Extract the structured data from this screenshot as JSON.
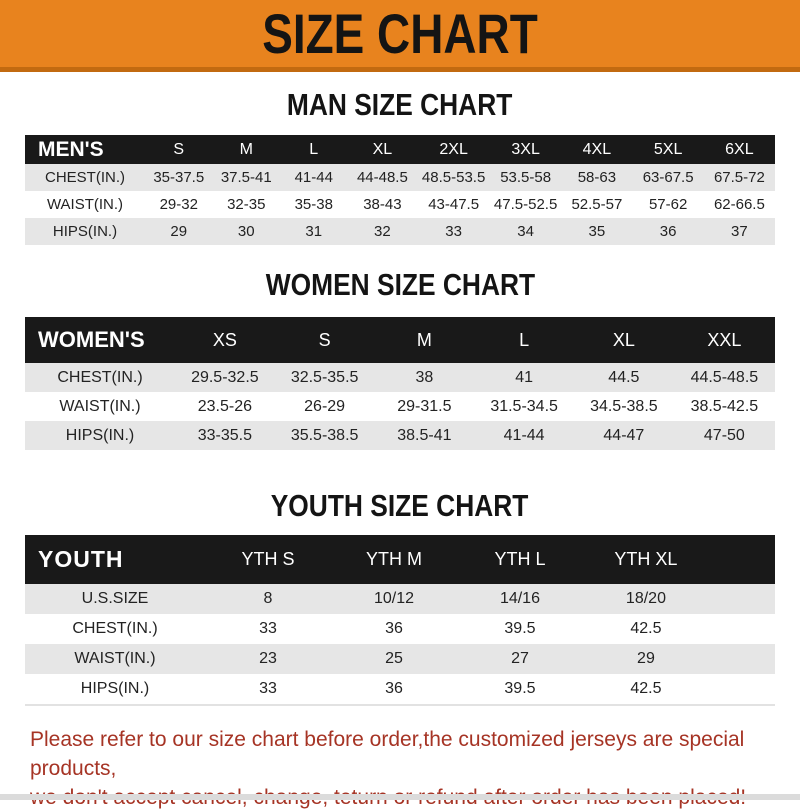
{
  "page": {
    "title": "SIZE CHART",
    "note_line1": "Please refer to our size chart before order,the customized jerseys are special products,",
    "note_line2": "we don't accept cancel, change, teturn or refund after order has been placed!"
  },
  "colors": {
    "banner_orange": "#E8831E",
    "banner_orange_dark": "#C26A10",
    "header_bar_black": "#191919",
    "row_gray": "#E6E6E6",
    "note_red": "#A63425"
  },
  "sections": [
    {
      "heading": "MAN SIZE CHART",
      "table": {
        "corner_label": "MEN'S",
        "columns": [
          "S",
          "M",
          "L",
          "XL",
          "2XL",
          "3XL",
          "4XL",
          "5XL",
          "6XL"
        ],
        "rows": [
          {
            "label": "CHEST(IN.)",
            "values": [
              "35-37.5",
              "37.5-41",
              "41-44",
              "44-48.5",
              "48.5-53.5",
              "53.5-58",
              "58-63",
              "63-67.5",
              "67.5-72"
            ]
          },
          {
            "label": "WAIST(IN.)",
            "values": [
              "29-32",
              "32-35",
              "35-38",
              "38-43",
              "43-47.5",
              "47.5-52.5",
              "52.5-57",
              "57-62",
              "62-66.5"
            ]
          },
          {
            "label": "HIPS(IN.)",
            "values": [
              "29",
              "30",
              "31",
              "32",
              "33",
              "34",
              "35",
              "36",
              "37"
            ]
          }
        ]
      }
    },
    {
      "heading": "WOMEN SIZE CHART",
      "table": {
        "corner_label": "WOMEN'S",
        "columns": [
          "XS",
          "S",
          "M",
          "L",
          "XL",
          "XXL"
        ],
        "rows": [
          {
            "label": "CHEST(IN.)",
            "values": [
              "29.5-32.5",
              "32.5-35.5",
              "38",
              "41",
              "44.5",
              "44.5-48.5"
            ]
          },
          {
            "label": "WAIST(IN.)",
            "values": [
              "23.5-26",
              "26-29",
              "29-31.5",
              "31.5-34.5",
              "34.5-38.5",
              "38.5-42.5"
            ]
          },
          {
            "label": "HIPS(IN.)",
            "values": [
              "33-35.5",
              "35.5-38.5",
              "38.5-41",
              "41-44",
              "44-47",
              "47-50"
            ]
          }
        ]
      }
    },
    {
      "heading": "YOUTH SIZE CHART",
      "table": {
        "corner_label": "YOUTH",
        "columns": [
          "YTH S",
          "YTH M",
          "YTH L",
          "YTH XL"
        ],
        "rows": [
          {
            "label": "U.S.SIZE",
            "values": [
              "8",
              "10/12",
              "14/16",
              "18/20"
            ]
          },
          {
            "label": "CHEST(IN.)",
            "values": [
              "33",
              "36",
              "39.5",
              "42.5"
            ]
          },
          {
            "label": "WAIST(IN.)",
            "values": [
              "23",
              "25",
              "27",
              "29"
            ]
          },
          {
            "label": "HIPS(IN.)",
            "values": [
              "33",
              "36",
              "39.5",
              "42.5"
            ]
          }
        ]
      }
    }
  ]
}
